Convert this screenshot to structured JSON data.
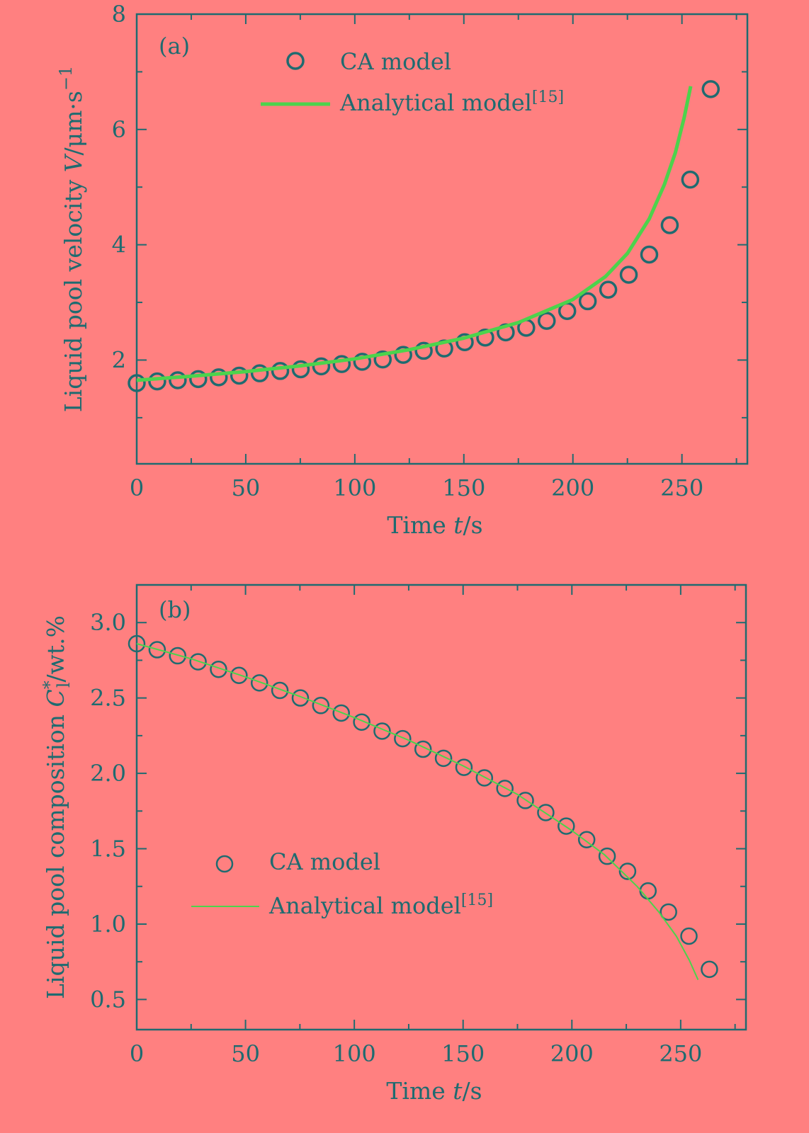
{
  "colors": {
    "background": "#ff8080",
    "axis": "#1f6b70",
    "ca_marker": "#1f6b70",
    "analytical_line": "#4cd34c"
  },
  "chart_data": [
    {
      "type": "scatter",
      "panel_label": "(a)",
      "xlabel": "Time t/s",
      "ylabel": "Liquid pool velocity V/μm·s⁻¹",
      "xlim": [
        0,
        280
      ],
      "ylim": [
        0.2,
        8
      ],
      "xticks": [
        0,
        50,
        100,
        150,
        200,
        250
      ],
      "yticks": [
        2,
        4,
        6,
        8
      ],
      "legend": {
        "position": "top-center",
        "ca_label": "CA model",
        "analytical_label": "Analytical model",
        "analytical_ref": "[15]"
      },
      "series": [
        {
          "name": "CA model",
          "kind": "markers",
          "x": [
            0,
            9.4,
            18.8,
            28.2,
            37.6,
            47,
            56.4,
            65.8,
            75.2,
            84.6,
            94,
            103.4,
            112.8,
            122.2,
            131.6,
            141,
            150.4,
            159.8,
            169.2,
            178.6,
            188,
            197.4,
            206.8,
            216.2,
            225.6,
            235,
            244.4,
            253.8,
            263.2
          ],
          "y": [
            1.6,
            1.63,
            1.65,
            1.67,
            1.7,
            1.73,
            1.77,
            1.81,
            1.84,
            1.89,
            1.93,
            1.97,
            2.01,
            2.09,
            2.16,
            2.2,
            2.31,
            2.39,
            2.48,
            2.56,
            2.68,
            2.85,
            3.02,
            3.22,
            3.48,
            3.83,
            4.34,
            5.13,
            6.7
          ]
        },
        {
          "name": "Analytical model",
          "kind": "line",
          "x": [
            0,
            25,
            50,
            75,
            100,
            125,
            150,
            175,
            200,
            215,
            225,
            235,
            242,
            247,
            251,
            254
          ],
          "y": [
            1.65,
            1.72,
            1.8,
            1.9,
            2.02,
            2.18,
            2.38,
            2.65,
            3.05,
            3.45,
            3.85,
            4.45,
            5.05,
            5.6,
            6.2,
            6.75
          ]
        }
      ]
    },
    {
      "type": "scatter",
      "panel_label": "(b)",
      "xlabel": "Time t/s",
      "ylabel": "Liquid pool composition C*l/wt.%",
      "ylabel_parts": {
        "prefix": "Liquid pool composition ",
        "symbol": "C",
        "superscript": "*",
        "subscript": "l",
        "suffix": "/wt.%"
      },
      "xlim": [
        0,
        280
      ],
      "ylim": [
        0.3,
        3.25
      ],
      "xticks": [
        0,
        50,
        100,
        150,
        200,
        250
      ],
      "yticks": [
        0.5,
        1.0,
        1.5,
        2.0,
        2.5,
        3.0
      ],
      "ytick_labels": [
        "0.5",
        "1.0",
        "1.5",
        "2.0",
        "2.5",
        "3.0"
      ],
      "legend": {
        "position": "bottom-left",
        "ca_label": "CA model",
        "analytical_label": "Analytical model",
        "analytical_ref": "[15]"
      },
      "series": [
        {
          "name": "CA model",
          "kind": "markers",
          "x": [
            0,
            9.4,
            18.8,
            28.2,
            37.6,
            47,
            56.4,
            65.8,
            75.2,
            84.6,
            94,
            103.4,
            112.8,
            122.2,
            131.6,
            141,
            150.4,
            159.8,
            169.2,
            178.6,
            188,
            197.4,
            206.8,
            216.2,
            225.6,
            235,
            244.4,
            253.8,
            263.2
          ],
          "y": [
            2.86,
            2.82,
            2.78,
            2.74,
            2.69,
            2.65,
            2.6,
            2.55,
            2.5,
            2.45,
            2.4,
            2.34,
            2.28,
            2.23,
            2.16,
            2.1,
            2.04,
            1.97,
            1.9,
            1.82,
            1.74,
            1.65,
            1.56,
            1.45,
            1.35,
            1.22,
            1.08,
            0.92,
            0.7
          ]
        },
        {
          "name": "Analytical model",
          "kind": "line",
          "x": [
            0,
            25,
            50,
            75,
            100,
            125,
            150,
            175,
            200,
            215,
            230,
            240,
            248,
            254,
            258
          ],
          "y": [
            2.86,
            2.76,
            2.64,
            2.51,
            2.37,
            2.22,
            2.05,
            1.86,
            1.62,
            1.46,
            1.25,
            1.08,
            0.92,
            0.76,
            0.63
          ]
        }
      ]
    }
  ]
}
